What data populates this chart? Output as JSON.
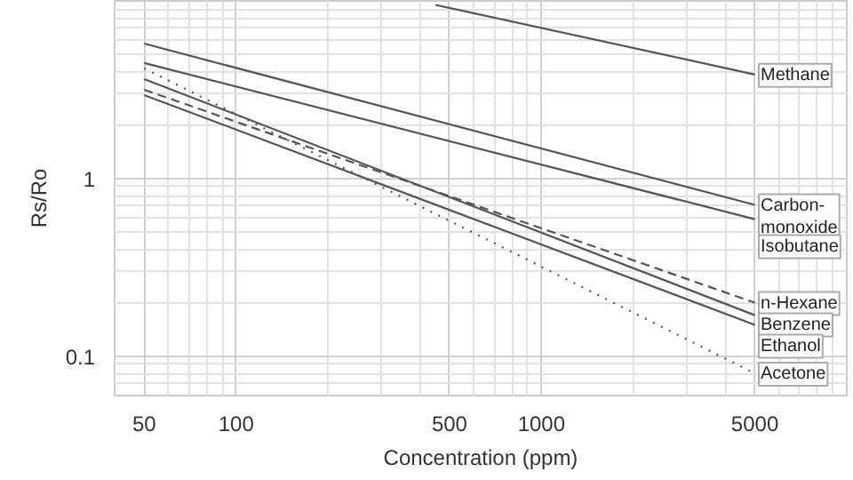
{
  "chart_data": {
    "type": "line",
    "xlabel": "Concentration (ppm)",
    "ylabel": "Rs/Ro",
    "log": "xy",
    "grid": true,
    "marker": "none",
    "xlim": [
      40,
      10000
    ],
    "xticks": [
      50,
      100,
      500,
      1000,
      5000
    ],
    "ylim": [
      0.06,
      10
    ],
    "yticks": [
      0.1,
      1
    ],
    "series": [
      {
        "name": "Methane",
        "color": "#555555",
        "line_style": "solid",
        "x": [
          450,
          5000
        ],
        "values": [
          9.5,
          3.85
        ]
      },
      {
        "name": "Carbon-\nmonoxide",
        "color": "#555555",
        "line_style": "solid",
        "x": [
          50,
          5000
        ],
        "values": [
          5.75,
          0.71
        ]
      },
      {
        "name": "Isobutane",
        "color": "#555555",
        "line_style": "solid",
        "x": [
          50,
          5000
        ],
        "values": [
          4.47,
          0.59
        ]
      },
      {
        "name": "n-Hexane",
        "color": "#555555",
        "line_style": "dashed",
        "x": [
          50,
          5000
        ],
        "values": [
          3.16,
          0.2
        ]
      },
      {
        "name": "Benzene",
        "color": "#555555",
        "line_style": "solid",
        "x": [
          50,
          5000
        ],
        "values": [
          3.63,
          0.17
        ]
      },
      {
        "name": "Ethanol",
        "color": "#555555",
        "line_style": "solid",
        "x": [
          50,
          5000
        ],
        "values": [
          2.95,
          0.15
        ]
      },
      {
        "name": "Acetone",
        "color": "#555555",
        "line_style": "dotted",
        "x": [
          50,
          5000
        ],
        "values": [
          4.17,
          0.08
        ]
      }
    ]
  }
}
